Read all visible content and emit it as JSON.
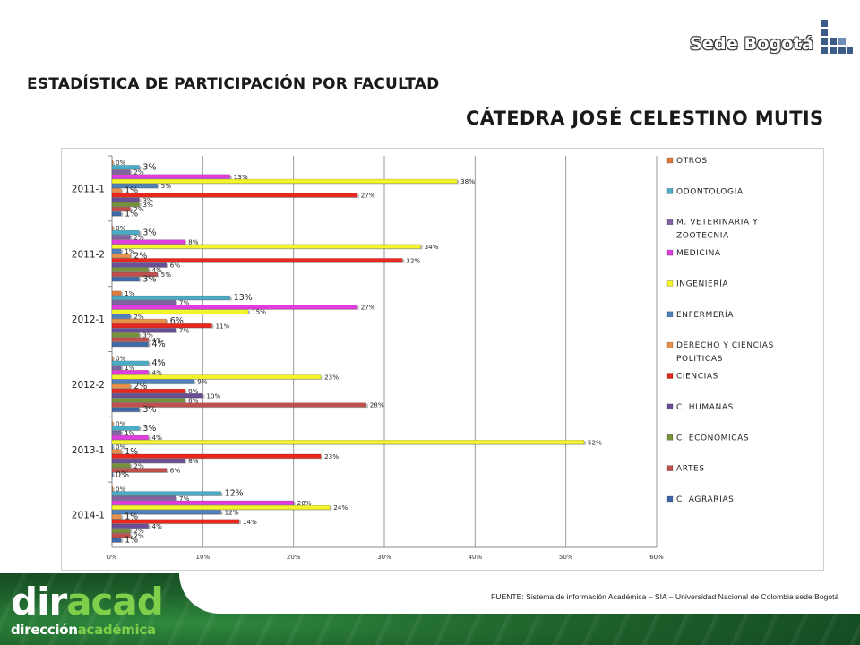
{
  "header": {
    "title": "ESTADÍSTICA DE PARTICIPACIÓN POR FACULTAD",
    "subtitle": "CÁTEDRA JOSÉ CELESTINO MUTIS",
    "logo_text": "Sede Bogotá"
  },
  "footer": {
    "source": "FUENTE: Sistema de información Académica – SIA – Universidad Nacional de Colombia sede Bogotá",
    "brand_big_white": "dir",
    "brand_big_green": "acad",
    "brand_small_white": "dirección",
    "brand_small_green": "académica"
  },
  "chart_data": {
    "type": "bar",
    "orientation": "horizontal",
    "title": "",
    "xlabel": "",
    "ylabel": "",
    "xlim": [
      0,
      60
    ],
    "x_ticks": [
      "0%",
      "10%",
      "20%",
      "30%",
      "40%",
      "50%",
      "60%"
    ],
    "grid": true,
    "legend_position": "right",
    "categories": [
      "2011-1",
      "2011-2",
      "2012-1",
      "2012-2",
      "2013-1",
      "2014-1"
    ],
    "series": [
      {
        "name": "OTROS",
        "color": "#e07b39",
        "values": [
          0,
          0,
          1,
          0,
          0,
          0
        ],
        "labels": [
          "0%",
          "0%",
          "1%",
          "0%",
          "0%",
          "0%"
        ]
      },
      {
        "name": "ODONTOLOGIA",
        "color": "#4bacc6",
        "values": [
          3,
          3,
          13,
          4,
          3,
          12
        ],
        "labels": [
          "3%",
          "3%",
          "13%",
          "4%",
          "3%",
          "12%"
        ]
      },
      {
        "name": "M. VETERINARIA Y ZOOTECNIA",
        "color": "#8064a2",
        "values": [
          2,
          2,
          7,
          1,
          1,
          7
        ],
        "labels": [
          "2%",
          "2%",
          "7%",
          "1%",
          "1%",
          "7%"
        ]
      },
      {
        "name": "MEDICINA",
        "color": "#e23ce0",
        "values": [
          13,
          8,
          27,
          4,
          4,
          20
        ],
        "labels": [
          "13%",
          "8%",
          "27%",
          "4%",
          "4%",
          "20%"
        ]
      },
      {
        "name": "INGENIERÍA",
        "color": "#f4f42a",
        "values": [
          38,
          34,
          15,
          23,
          52,
          24
        ],
        "labels": [
          "38%",
          "34%",
          "15%",
          "23%",
          "52%",
          "24%"
        ]
      },
      {
        "name": "ENFERMERÍA",
        "color": "#4f81bd",
        "values": [
          5,
          1,
          2,
          9,
          0,
          12
        ],
        "labels": [
          "5%",
          "1%",
          "2%",
          "9%",
          "0%",
          "12%"
        ]
      },
      {
        "name": "DERECHO Y CIENCIAS POLITICAS",
        "color": "#e8914a",
        "values": [
          1,
          2,
          6,
          2,
          1,
          1
        ],
        "labels": [
          "1%",
          "2%",
          "6%",
          "2%",
          "1%",
          "1%"
        ]
      },
      {
        "name": "CIENCIAS",
        "color": "#e8281e",
        "values": [
          27,
          32,
          11,
          8,
          23,
          14
        ],
        "labels": [
          "27%",
          "32%",
          "11%",
          "8%",
          "23%",
          "14%"
        ]
      },
      {
        "name": "C. HUMANAS",
        "color": "#6a4f96",
        "values": [
          3,
          6,
          7,
          10,
          8,
          4
        ],
        "labels": [
          "3%",
          "6%",
          "7%",
          "10%",
          "8%",
          "4%"
        ]
      },
      {
        "name": "C. ECONOMICAS",
        "color": "#76933c",
        "values": [
          3,
          4,
          3,
          8,
          2,
          2
        ],
        "labels": [
          "3%",
          "4%",
          "3%",
          "8%",
          "2%",
          "2%"
        ]
      },
      {
        "name": "ARTES",
        "color": "#c0504d",
        "values": [
          2,
          5,
          4,
          28,
          6,
          2
        ],
        "labels": [
          "2%",
          "5%",
          "4%",
          "28%",
          "6%",
          "2%"
        ]
      },
      {
        "name": "C. AGRARIAS",
        "color": "#3e6aa8",
        "values": [
          1,
          3,
          4,
          3,
          0,
          1
        ],
        "labels": [
          "1%",
          "3%",
          "4%",
          "3%",
          "0%",
          "1%"
        ]
      }
    ]
  }
}
